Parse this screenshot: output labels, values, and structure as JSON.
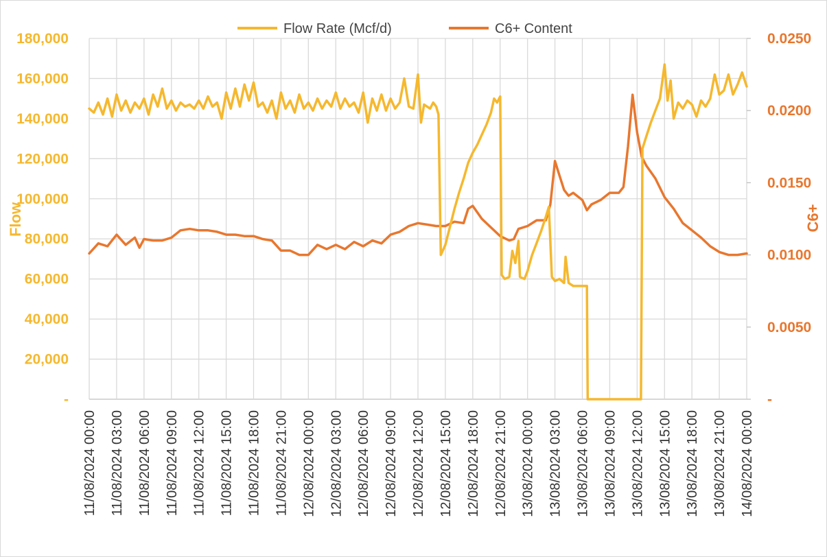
{
  "chart_data": {
    "type": "line",
    "ylabel": "Flow",
    "y2label": "C6+",
    "legend_position": "top",
    "grid": true,
    "ylim": [
      0,
      180000
    ],
    "y2lim": [
      0,
      0.025
    ],
    "y_ticks": [
      "-",
      "20,000",
      "40,000",
      "60,000",
      "80,000",
      "100,000",
      "120,000",
      "140,000",
      "160,000",
      "180,000"
    ],
    "y2_ticks": [
      "-",
      "0.0050",
      "0.0100",
      "0.0150",
      "0.0200",
      "0.0250"
    ],
    "x_ticks": [
      "11/08/2024 00:00",
      "11/08/2024 03:00",
      "11/08/2024 06:00",
      "11/08/2024 09:00",
      "11/08/2024 12:00",
      "11/08/2024 15:00",
      "11/08/2024 18:00",
      "11/08/2024 21:00",
      "12/08/2024 00:00",
      "12/08/2024 03:00",
      "12/08/2024 06:00",
      "12/08/2024 09:00",
      "12/08/2024 12:00",
      "12/08/2024 15:00",
      "12/08/2024 18:00",
      "12/08/2024 21:00",
      "13/08/2024 00:00",
      "13/08/2024 03:00",
      "13/08/2024 06:00",
      "13/08/2024 09:00",
      "13/08/2024 12:00",
      "13/08/2024 15:00",
      "13/08/2024 18:00",
      "13/08/2024 21:00",
      "14/08/2024 00:00"
    ],
    "series": [
      {
        "name": "Flow Rate (Mcf/d)",
        "axis": "left",
        "color": "#f5b82e",
        "points": [
          [
            "11/08/2024 00:00",
            145000
          ],
          [
            "11/08/2024 00:30",
            143000
          ],
          [
            "11/08/2024 01:00",
            148000
          ],
          [
            "11/08/2024 01:30",
            142000
          ],
          [
            "11/08/2024 02:00",
            150000
          ],
          [
            "11/08/2024 02:30",
            141000
          ],
          [
            "11/08/2024 03:00",
            152000
          ],
          [
            "11/08/2024 03:30",
            144000
          ],
          [
            "11/08/2024 04:00",
            149000
          ],
          [
            "11/08/2024 04:30",
            143000
          ],
          [
            "11/08/2024 05:00",
            148000
          ],
          [
            "11/08/2024 05:30",
            145000
          ],
          [
            "11/08/2024 06:00",
            150000
          ],
          [
            "11/08/2024 06:30",
            142000
          ],
          [
            "11/08/2024 07:00",
            152000
          ],
          [
            "11/08/2024 07:30",
            146000
          ],
          [
            "11/08/2024 08:00",
            155000
          ],
          [
            "11/08/2024 08:30",
            145000
          ],
          [
            "11/08/2024 09:00",
            149000
          ],
          [
            "11/08/2024 09:30",
            144000
          ],
          [
            "11/08/2024 10:00",
            148000
          ],
          [
            "11/08/2024 10:30",
            146000
          ],
          [
            "11/08/2024 11:00",
            147000
          ],
          [
            "11/08/2024 11:30",
            145000
          ],
          [
            "11/08/2024 12:00",
            149000
          ],
          [
            "11/08/2024 12:30",
            145000
          ],
          [
            "11/08/2024 13:00",
            151000
          ],
          [
            "11/08/2024 13:30",
            146000
          ],
          [
            "11/08/2024 14:00",
            148000
          ],
          [
            "11/08/2024 14:30",
            140000
          ],
          [
            "11/08/2024 15:00",
            153000
          ],
          [
            "11/08/2024 15:30",
            145000
          ],
          [
            "11/08/2024 16:00",
            155000
          ],
          [
            "11/08/2024 16:30",
            146000
          ],
          [
            "11/08/2024 17:00",
            157000
          ],
          [
            "11/08/2024 17:30",
            149000
          ],
          [
            "11/08/2024 18:00",
            158000
          ],
          [
            "11/08/2024 18:30",
            146000
          ],
          [
            "11/08/2024 19:00",
            148000
          ],
          [
            "11/08/2024 19:30",
            143000
          ],
          [
            "11/08/2024 20:00",
            149000
          ],
          [
            "11/08/2024 20:30",
            140000
          ],
          [
            "11/08/2024 21:00",
            153000
          ],
          [
            "11/08/2024 21:30",
            145000
          ],
          [
            "11/08/2024 22:00",
            149000
          ],
          [
            "11/08/2024 22:30",
            143000
          ],
          [
            "11/08/2024 23:00",
            152000
          ],
          [
            "11/08/2024 23:30",
            145000
          ],
          [
            "12/08/2024 00:00",
            148000
          ],
          [
            "12/08/2024 00:30",
            144000
          ],
          [
            "12/08/2024 01:00",
            150000
          ],
          [
            "12/08/2024 01:30",
            145000
          ],
          [
            "12/08/2024 02:00",
            149000
          ],
          [
            "12/08/2024 02:30",
            146000
          ],
          [
            "12/08/2024 03:00",
            153000
          ],
          [
            "12/08/2024 03:30",
            145000
          ],
          [
            "12/08/2024 04:00",
            150000
          ],
          [
            "12/08/2024 04:30",
            146000
          ],
          [
            "12/08/2024 05:00",
            148000
          ],
          [
            "12/08/2024 05:30",
            143000
          ],
          [
            "12/08/2024 06:00",
            153000
          ],
          [
            "12/08/2024 06:30",
            138000
          ],
          [
            "12/08/2024 07:00",
            150000
          ],
          [
            "12/08/2024 07:30",
            144000
          ],
          [
            "12/08/2024 08:00",
            152000
          ],
          [
            "12/08/2024 08:30",
            144000
          ],
          [
            "12/08/2024 09:00",
            150000
          ],
          [
            "12/08/2024 09:30",
            145000
          ],
          [
            "12/08/2024 10:00",
            148000
          ],
          [
            "12/08/2024 10:30",
            160000
          ],
          [
            "12/08/2024 11:00",
            146000
          ],
          [
            "12/08/2024 11:30",
            145000
          ],
          [
            "12/08/2024 12:00",
            162000
          ],
          [
            "12/08/2024 12:20",
            138000
          ],
          [
            "12/08/2024 12:40",
            147000
          ],
          [
            "12/08/2024 13:20",
            145000
          ],
          [
            "12/08/2024 13:40",
            148000
          ],
          [
            "12/08/2024 14:00",
            146000
          ],
          [
            "12/08/2024 14:15",
            142000
          ],
          [
            "12/08/2024 14:30",
            72000
          ],
          [
            "12/08/2024 15:00",
            77000
          ],
          [
            "12/08/2024 15:30",
            86000
          ],
          [
            "12/08/2024 16:00",
            95000
          ],
          [
            "12/08/2024 16:30",
            103000
          ],
          [
            "12/08/2024 17:00",
            110000
          ],
          [
            "12/08/2024 17:30",
            118000
          ],
          [
            "12/08/2024 18:00",
            123000
          ],
          [
            "12/08/2024 18:30",
            127000
          ],
          [
            "12/08/2024 19:00",
            132000
          ],
          [
            "12/08/2024 19:30",
            137000
          ],
          [
            "12/08/2024 20:00",
            143000
          ],
          [
            "12/08/2024 20:20",
            150000
          ],
          [
            "12/08/2024 20:40",
            148000
          ],
          [
            "12/08/2024 21:00",
            151000
          ],
          [
            "12/08/2024 21:10",
            62000
          ],
          [
            "12/08/2024 21:30",
            60000
          ],
          [
            "12/08/2024 22:00",
            61000
          ],
          [
            "12/08/2024 22:20",
            74000
          ],
          [
            "12/08/2024 22:40",
            68000
          ],
          [
            "12/08/2024 23:00",
            79000
          ],
          [
            "12/08/2024 23:10",
            61000
          ],
          [
            "12/08/2024 23:40",
            60000
          ],
          [
            "13/08/2024 00:00",
            64000
          ],
          [
            "13/08/2024 00:30",
            72000
          ],
          [
            "13/08/2024 01:00",
            78000
          ],
          [
            "13/08/2024 01:30",
            84000
          ],
          [
            "13/08/2024 02:00",
            91000
          ],
          [
            "13/08/2024 02:20",
            96000
          ],
          [
            "13/08/2024 02:40",
            61000
          ],
          [
            "13/08/2024 03:00",
            59000
          ],
          [
            "13/08/2024 03:30",
            60000
          ],
          [
            "13/08/2024 04:00",
            58000
          ],
          [
            "13/08/2024 04:10",
            71000
          ],
          [
            "13/08/2024 04:30",
            58000
          ],
          [
            "13/08/2024 05:00",
            56500
          ],
          [
            "13/08/2024 05:30",
            56500
          ],
          [
            "13/08/2024 06:00",
            56500
          ],
          [
            "13/08/2024 06:30",
            56500
          ],
          [
            "13/08/2024 06:35",
            0
          ],
          [
            "13/08/2024 12:25",
            0
          ],
          [
            "13/08/2024 12:35",
            125000
          ],
          [
            "13/08/2024 13:00",
            131000
          ],
          [
            "13/08/2024 13:30",
            138000
          ],
          [
            "13/08/2024 14:00",
            144000
          ],
          [
            "13/08/2024 14:30",
            150000
          ],
          [
            "13/08/2024 15:00",
            167000
          ],
          [
            "13/08/2024 15:20",
            149000
          ],
          [
            "13/08/2024 15:40",
            159000
          ],
          [
            "13/08/2024 16:00",
            140000
          ],
          [
            "13/08/2024 16:30",
            148000
          ],
          [
            "13/08/2024 17:00",
            145000
          ],
          [
            "13/08/2024 17:30",
            149000
          ],
          [
            "13/08/2024 18:00",
            147000
          ],
          [
            "13/08/2024 18:30",
            141000
          ],
          [
            "13/08/2024 19:00",
            149000
          ],
          [
            "13/08/2024 19:30",
            146000
          ],
          [
            "13/08/2024 20:00",
            150000
          ],
          [
            "13/08/2024 20:30",
            162000
          ],
          [
            "13/08/2024 21:00",
            152000
          ],
          [
            "13/08/2024 21:30",
            154000
          ],
          [
            "13/08/2024 22:00",
            162000
          ],
          [
            "13/08/2024 22:30",
            152000
          ],
          [
            "13/08/2024 23:00",
            157000
          ],
          [
            "13/08/2024 23:30",
            163000
          ],
          [
            "14/08/2024 00:00",
            156000
          ]
        ]
      },
      {
        "name": "C6+ Content",
        "axis": "right",
        "color": "#e8772e",
        "points": [
          [
            "11/08/2024 00:00",
            0.0101
          ],
          [
            "11/08/2024 01:00",
            0.0108
          ],
          [
            "11/08/2024 02:00",
            0.0106
          ],
          [
            "11/08/2024 03:00",
            0.0114
          ],
          [
            "11/08/2024 04:00",
            0.0107
          ],
          [
            "11/08/2024 05:00",
            0.0112
          ],
          [
            "11/08/2024 05:30",
            0.0105
          ],
          [
            "11/08/2024 06:00",
            0.0111
          ],
          [
            "11/08/2024 07:00",
            0.011
          ],
          [
            "11/08/2024 08:00",
            0.011
          ],
          [
            "11/08/2024 09:00",
            0.0112
          ],
          [
            "11/08/2024 10:00",
            0.0117
          ],
          [
            "11/08/2024 11:00",
            0.0118
          ],
          [
            "11/08/2024 12:00",
            0.0117
          ],
          [
            "11/08/2024 13:00",
            0.0117
          ],
          [
            "11/08/2024 14:00",
            0.0116
          ],
          [
            "11/08/2024 15:00",
            0.0114
          ],
          [
            "11/08/2024 16:00",
            0.0114
          ],
          [
            "11/08/2024 17:00",
            0.0113
          ],
          [
            "11/08/2024 18:00",
            0.0113
          ],
          [
            "11/08/2024 19:00",
            0.0111
          ],
          [
            "11/08/2024 20:00",
            0.011
          ],
          [
            "11/08/2024 21:00",
            0.0103
          ],
          [
            "11/08/2024 22:00",
            0.0103
          ],
          [
            "11/08/2024 23:00",
            0.01
          ],
          [
            "12/08/2024 00:00",
            0.01
          ],
          [
            "12/08/2024 01:00",
            0.0107
          ],
          [
            "12/08/2024 02:00",
            0.0104
          ],
          [
            "12/08/2024 03:00",
            0.0107
          ],
          [
            "12/08/2024 04:00",
            0.0104
          ],
          [
            "12/08/2024 05:00",
            0.0109
          ],
          [
            "12/08/2024 06:00",
            0.0106
          ],
          [
            "12/08/2024 07:00",
            0.011
          ],
          [
            "12/08/2024 08:00",
            0.0108
          ],
          [
            "12/08/2024 09:00",
            0.0114
          ],
          [
            "12/08/2024 10:00",
            0.0116
          ],
          [
            "12/08/2024 11:00",
            0.012
          ],
          [
            "12/08/2024 12:00",
            0.0122
          ],
          [
            "12/08/2024 13:00",
            0.0121
          ],
          [
            "12/08/2024 14:00",
            0.012
          ],
          [
            "12/08/2024 15:00",
            0.012
          ],
          [
            "12/08/2024 16:00",
            0.0123
          ],
          [
            "12/08/2024 17:00",
            0.0122
          ],
          [
            "12/08/2024 17:30",
            0.0132
          ],
          [
            "12/08/2024 18:00",
            0.0134
          ],
          [
            "12/08/2024 19:00",
            0.0125
          ],
          [
            "12/08/2024 20:00",
            0.0119
          ],
          [
            "12/08/2024 21:00",
            0.0113
          ],
          [
            "12/08/2024 22:00",
            0.011
          ],
          [
            "12/08/2024 22:30",
            0.0111
          ],
          [
            "12/08/2024 23:00",
            0.0118
          ],
          [
            "13/08/2024 00:00",
            0.012
          ],
          [
            "13/08/2024 01:00",
            0.0124
          ],
          [
            "13/08/2024 02:00",
            0.0124
          ],
          [
            "13/08/2024 02:30",
            0.0135
          ],
          [
            "13/08/2024 03:00",
            0.0165
          ],
          [
            "13/08/2024 03:30",
            0.0155
          ],
          [
            "13/08/2024 04:00",
            0.0145
          ],
          [
            "13/08/2024 04:30",
            0.0141
          ],
          [
            "13/08/2024 05:00",
            0.0143
          ],
          [
            "13/08/2024 06:00",
            0.0138
          ],
          [
            "13/08/2024 06:30",
            0.0131
          ],
          [
            "13/08/2024 07:00",
            0.0135
          ],
          [
            "13/08/2024 08:00",
            0.0138
          ],
          [
            "13/08/2024 09:00",
            0.0143
          ],
          [
            "13/08/2024 10:00",
            0.0143
          ],
          [
            "13/08/2024 10:30",
            0.0147
          ],
          [
            "13/08/2024 11:00",
            0.0175
          ],
          [
            "13/08/2024 11:30",
            0.0211
          ],
          [
            "13/08/2024 12:00",
            0.0185
          ],
          [
            "13/08/2024 12:30",
            0.0168
          ],
          [
            "13/08/2024 13:00",
            0.0162
          ],
          [
            "13/08/2024 14:00",
            0.0153
          ],
          [
            "13/08/2024 15:00",
            0.014
          ],
          [
            "13/08/2024 16:00",
            0.0132
          ],
          [
            "13/08/2024 17:00",
            0.0122
          ],
          [
            "13/08/2024 18:00",
            0.0117
          ],
          [
            "13/08/2024 19:00",
            0.0112
          ],
          [
            "13/08/2024 20:00",
            0.0106
          ],
          [
            "13/08/2024 21:00",
            0.0102
          ],
          [
            "13/08/2024 22:00",
            0.01
          ],
          [
            "13/08/2024 23:00",
            0.01
          ],
          [
            "14/08/2024 00:00",
            0.0101
          ]
        ]
      }
    ]
  }
}
